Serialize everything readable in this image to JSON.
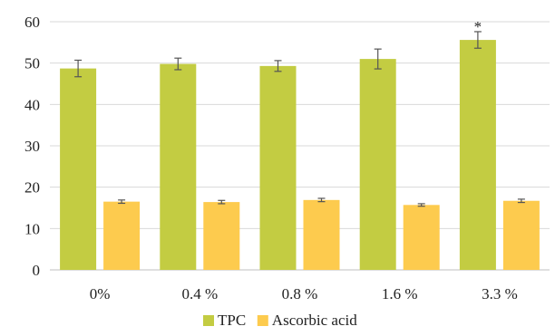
{
  "chart_data": {
    "type": "bar",
    "categories": [
      "0%",
      "0.4 %",
      "0.8 %",
      "1.6 %",
      "3.3 %"
    ],
    "series": [
      {
        "name": "TPC",
        "color": "#c3cc42",
        "values": [
          48.7,
          49.8,
          49.3,
          51.0,
          55.6
        ],
        "errors": [
          2.0,
          1.4,
          1.3,
          2.4,
          2.0
        ],
        "annotations": [
          "",
          "",
          "",
          "",
          "*"
        ]
      },
      {
        "name": "Ascorbic acid",
        "color": "#fdcb4e",
        "values": [
          16.5,
          16.4,
          16.9,
          15.7,
          16.7
        ],
        "errors": [
          0.4,
          0.4,
          0.4,
          0.3,
          0.4
        ],
        "annotations": [
          "",
          "",
          "",
          "",
          ""
        ]
      }
    ],
    "ylim": [
      0,
      60
    ],
    "yticks": [
      0,
      10,
      20,
      30,
      40,
      50,
      60
    ],
    "grid": true,
    "legend_position": "bottom-center"
  }
}
